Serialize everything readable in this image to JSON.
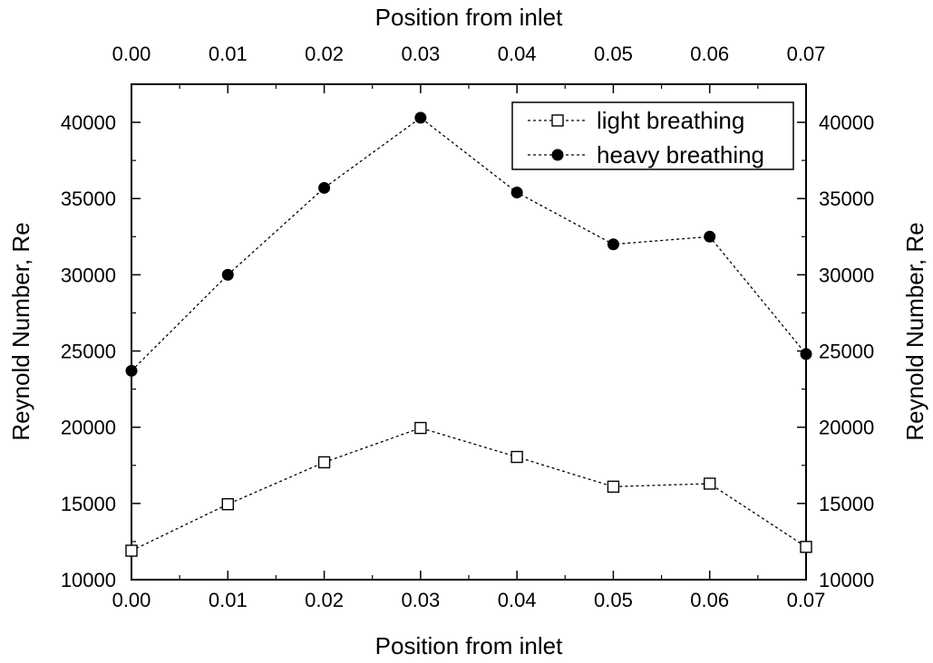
{
  "chart_data": {
    "type": "line",
    "x": [
      0.0,
      0.01,
      0.02,
      0.03,
      0.04,
      0.05,
      0.06,
      0.07
    ],
    "x_tick_labels": [
      "0.00",
      "0.01",
      "0.02",
      "0.03",
      "0.04",
      "0.05",
      "0.06",
      "0.07"
    ],
    "xlabel_bottom": "Position from inlet",
    "xlabel_top": "Position from inlet",
    "ylabel_left": "Reynold Number, Re",
    "ylabel_right": "Reynold Number, Re",
    "xlim": [
      0.0,
      0.07
    ],
    "ylim": [
      10000,
      42500
    ],
    "y_ticks": [
      10000,
      15000,
      20000,
      25000,
      30000,
      35000,
      40000
    ],
    "y_tick_labels": [
      "10000",
      "15000",
      "20000",
      "25000",
      "30000",
      "35000",
      "40000"
    ],
    "grid": false,
    "legend_position": "top-right",
    "series": [
      {
        "name": "light breathing",
        "marker": "open-square",
        "color": "#000000",
        "values": [
          11900,
          14950,
          17700,
          19950,
          18050,
          16100,
          16300,
          12150
        ]
      },
      {
        "name": "heavy breathing",
        "marker": "filled-circle",
        "color": "#000000",
        "values": [
          23700,
          30000,
          35700,
          40300,
          35400,
          32000,
          32500,
          24800
        ]
      }
    ]
  }
}
